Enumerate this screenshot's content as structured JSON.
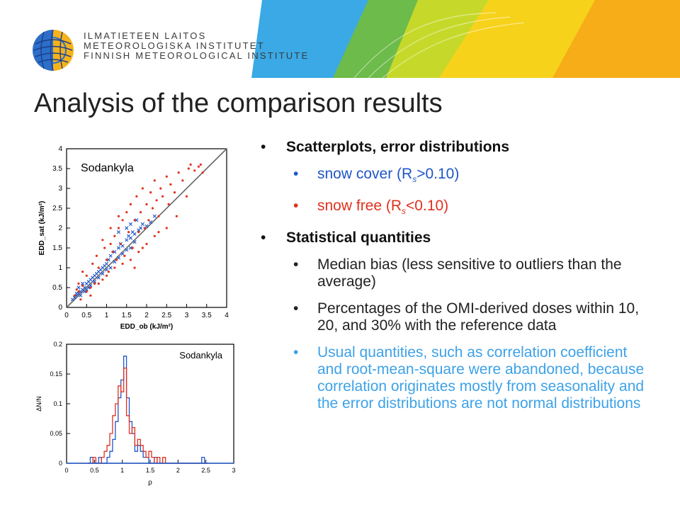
{
  "header": {
    "org_lines": [
      "ILMATIETEEN LAITOS",
      "METEOROLOGISKA INSTITUTET",
      "FINNISH METEOROLOGICAL INSTITUTE"
    ]
  },
  "slide": {
    "title": "Analysis of the comparison results"
  },
  "bullets": {
    "b1": "Scatterplots, error distributions",
    "snow_cover_pre": "snow cover (R",
    "snow_cover_sub": "s",
    "snow_cover_post": ">0.10)",
    "snow_free_pre": "snow free (R",
    "snow_free_sub": "s",
    "snow_free_post": "<0.10)",
    "b2": "Statistical quantities",
    "median": "Median bias (less sensitive to outliers than the average)",
    "percent": "Percentages of the OMI-derived doses within 10, 20, and 30% with the reference data",
    "usual": "Usual quantities, such as correlation coefficient and root-mean-square were abandoned, because correlation originates mostly from seasonality and the error distributions are not normal distributions"
  },
  "colors": {
    "snow_cover": "#1f56c8",
    "snow_free": "#e0301e",
    "text": "#222222",
    "note": "#3da2e8"
  },
  "chart_data": [
    {
      "type": "scatter",
      "title": "Sodankyla",
      "xlabel": "EDD_ob (kJ/m²)",
      "ylabel": "EDD_sat (kJ/m²)",
      "xlim": [
        0,
        4
      ],
      "ylim": [
        0,
        4
      ],
      "xticks": [
        "0",
        "0.5",
        "1",
        "1.5",
        "2",
        "2.5",
        "3",
        "3.5",
        "4"
      ],
      "yticks": [
        "0",
        "0.5",
        "1",
        "1.5",
        "2",
        "2.5",
        "3",
        "3.5",
        "4"
      ],
      "reference_line": "1:1",
      "series": [
        {
          "color": "#1f56c8",
          "marker": "x",
          "points": [
            [
              0.15,
              0.2
            ],
            [
              0.2,
              0.25
            ],
            [
              0.25,
              0.3
            ],
            [
              0.3,
              0.35
            ],
            [
              0.35,
              0.4
            ],
            [
              0.4,
              0.45
            ],
            [
              0.45,
              0.5
            ],
            [
              0.5,
              0.6
            ],
            [
              0.55,
              0.65
            ],
            [
              0.6,
              0.7
            ],
            [
              0.65,
              0.75
            ],
            [
              0.7,
              0.8
            ],
            [
              0.75,
              0.85
            ],
            [
              0.8,
              0.9
            ],
            [
              0.85,
              0.95
            ],
            [
              0.9,
              1.0
            ],
            [
              0.95,
              1.05
            ],
            [
              1.0,
              1.1
            ],
            [
              1.05,
              1.2
            ],
            [
              1.1,
              1.3
            ],
            [
              1.2,
              1.4
            ],
            [
              1.3,
              1.5
            ],
            [
              1.35,
              1.6
            ],
            [
              1.4,
              1.55
            ],
            [
              1.5,
              1.7
            ],
            [
              1.55,
              1.8
            ],
            [
              1.6,
              1.75
            ],
            [
              1.65,
              1.9
            ],
            [
              1.7,
              1.85
            ],
            [
              1.8,
              1.95
            ],
            [
              1.85,
              2.0
            ],
            [
              1.9,
              2.1
            ],
            [
              2.0,
              2.05
            ],
            [
              2.1,
              2.15
            ],
            [
              2.2,
              2.3
            ],
            [
              0.3,
              0.5
            ],
            [
              0.4,
              0.6
            ],
            [
              0.5,
              0.45
            ],
            [
              0.6,
              0.55
            ],
            [
              0.7,
              0.65
            ],
            [
              0.8,
              0.75
            ],
            [
              0.9,
              0.85
            ],
            [
              1.0,
              0.95
            ],
            [
              1.1,
              1.0
            ],
            [
              1.2,
              1.15
            ],
            [
              1.3,
              1.25
            ],
            [
              1.4,
              1.35
            ],
            [
              1.5,
              1.45
            ],
            [
              1.6,
              1.5
            ],
            [
              1.7,
              1.65
            ],
            [
              1.75,
              2.2
            ],
            [
              1.6,
              2.1
            ],
            [
              1.3,
              1.9
            ],
            [
              1.5,
              2.0
            ],
            [
              0.25,
              0.35
            ],
            [
              0.35,
              0.3
            ],
            [
              0.45,
              0.4
            ],
            [
              0.55,
              0.5
            ]
          ]
        },
        {
          "color": "#e0301e",
          "marker": "dot",
          "points": [
            [
              0.2,
              0.3
            ],
            [
              0.3,
              0.6
            ],
            [
              0.35,
              0.2
            ],
            [
              0.4,
              0.9
            ],
            [
              0.5,
              0.8
            ],
            [
              0.6,
              0.3
            ],
            [
              0.65,
              1.1
            ],
            [
              0.7,
              0.6
            ],
            [
              0.75,
              1.3
            ],
            [
              0.8,
              1.0
            ],
            [
              0.9,
              0.7
            ],
            [
              0.95,
              1.5
            ],
            [
              1.0,
              1.2
            ],
            [
              1.05,
              0.9
            ],
            [
              1.1,
              1.6
            ],
            [
              1.15,
              1.4
            ],
            [
              1.2,
              1.8
            ],
            [
              1.25,
              1.2
            ],
            [
              1.3,
              2.0
            ],
            [
              1.35,
              1.6
            ],
            [
              1.4,
              2.2
            ],
            [
              1.45,
              1.3
            ],
            [
              1.5,
              2.4
            ],
            [
              1.55,
              1.9
            ],
            [
              1.6,
              2.6
            ],
            [
              1.65,
              1.5
            ],
            [
              1.7,
              2.2
            ],
            [
              1.75,
              2.8
            ],
            [
              1.8,
              1.9
            ],
            [
              1.85,
              2.4
            ],
            [
              1.9,
              3.0
            ],
            [
              1.95,
              2.0
            ],
            [
              2.0,
              2.6
            ],
            [
              2.05,
              2.2
            ],
            [
              2.1,
              2.9
            ],
            [
              2.15,
              2.5
            ],
            [
              2.2,
              3.2
            ],
            [
              2.25,
              2.7
            ],
            [
              2.3,
              2.3
            ],
            [
              2.35,
              3.0
            ],
            [
              2.4,
              2.8
            ],
            [
              2.5,
              3.3
            ],
            [
              2.55,
              2.6
            ],
            [
              2.6,
              3.1
            ],
            [
              2.7,
              2.9
            ],
            [
              2.8,
              3.4
            ],
            [
              2.9,
              3.2
            ],
            [
              3.0,
              2.8
            ],
            [
              3.05,
              3.5
            ],
            [
              3.1,
              3.6
            ],
            [
              3.2,
              3.45
            ],
            [
              3.3,
              3.55
            ],
            [
              3.35,
              3.6
            ],
            [
              3.4,
              3.4
            ],
            [
              2.75,
              2.3
            ],
            [
              2.5,
              2.0
            ],
            [
              2.2,
              1.8
            ],
            [
              2.0,
              1.6
            ],
            [
              1.8,
              1.4
            ],
            [
              1.6,
              1.2
            ],
            [
              1.4,
              1.1
            ],
            [
              1.2,
              1.0
            ],
            [
              1.0,
              0.8
            ],
            [
              0.8,
              0.6
            ],
            [
              0.6,
              0.5
            ],
            [
              0.5,
              0.4
            ],
            [
              1.1,
              2.0
            ],
            [
              1.3,
              2.3
            ],
            [
              0.9,
              1.7
            ],
            [
              1.7,
              1.0
            ],
            [
              1.9,
              1.5
            ],
            [
              2.3,
              1.9
            ],
            [
              0.4,
              0.55
            ],
            [
              0.3,
              0.4
            ],
            [
              0.25,
              0.45
            ]
          ]
        }
      ]
    },
    {
      "type": "line",
      "title": "Sodankyla",
      "xlabel": "ρ",
      "ylabel": "ΔN/N",
      "xlim": [
        0,
        3
      ],
      "ylim": [
        0,
        0.2
      ],
      "xticks": [
        "0",
        "0.5",
        "1",
        "1.5",
        "2",
        "2.5",
        "3"
      ],
      "yticks": [
        "0",
        "0.05",
        "0.1",
        "0.15",
        "0.2"
      ],
      "x": [
        0.4,
        0.45,
        0.5,
        0.55,
        0.6,
        0.65,
        0.7,
        0.75,
        0.8,
        0.85,
        0.9,
        0.95,
        1.0,
        1.05,
        1.1,
        1.15,
        1.2,
        1.25,
        1.3,
        1.35,
        1.4,
        1.45,
        1.5,
        1.55,
        1.6,
        1.65,
        1.7,
        1.75,
        1.8,
        1.85,
        1.9,
        2.4,
        2.45,
        2.5
      ],
      "series": [
        {
          "color": "#1f56c8",
          "values": [
            0,
            0.01,
            0,
            0,
            0.01,
            0,
            0,
            0.01,
            0.02,
            0.04,
            0.07,
            0.11,
            0.14,
            0.18,
            0.11,
            0.07,
            0.05,
            0.02,
            0.03,
            0.02,
            0.01,
            0.01,
            0,
            0,
            0.01,
            0,
            0,
            0,
            0,
            0,
            0,
            0,
            0.01,
            0
          ]
        },
        {
          "color": "#e0301e",
          "values": [
            0,
            0,
            0.01,
            0,
            0,
            0.01,
            0.02,
            0.03,
            0.05,
            0.08,
            0.1,
            0.13,
            0.12,
            0.16,
            0.08,
            0.05,
            0.06,
            0.03,
            0.04,
            0.03,
            0.02,
            0.01,
            0.02,
            0.01,
            0,
            0.01,
            0,
            0.01,
            0,
            0,
            0,
            0,
            0,
            0
          ]
        }
      ]
    }
  ]
}
